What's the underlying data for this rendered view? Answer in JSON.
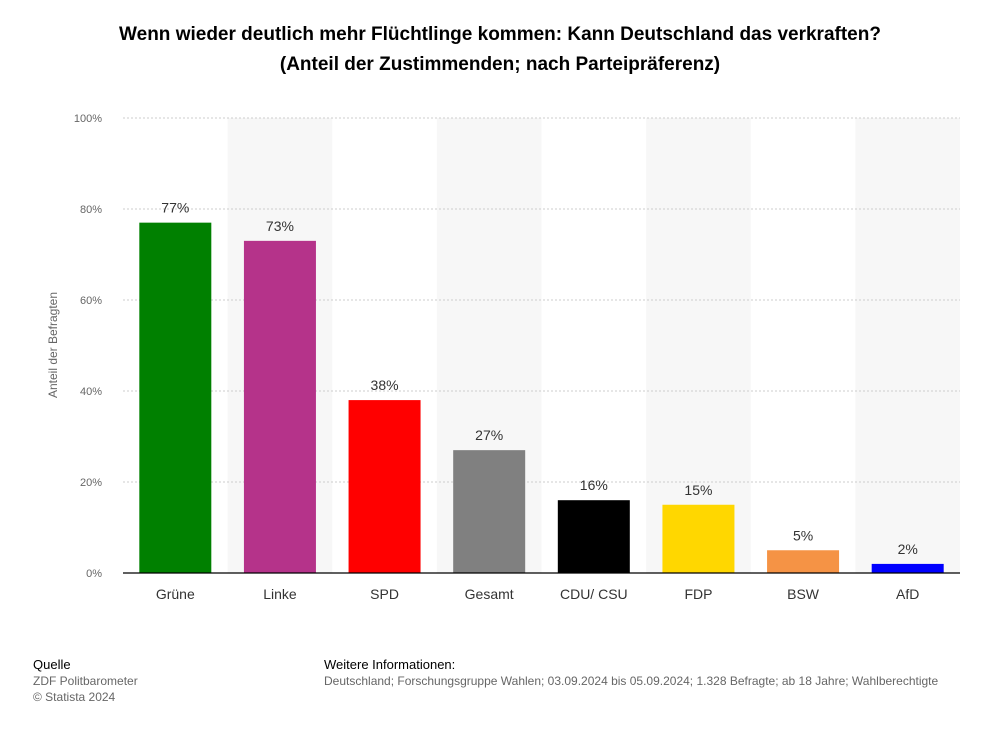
{
  "header": {
    "title_line1": "Wenn wieder deutlich mehr Flüchtlinge kommen: Kann Deutschland das verkraften?",
    "title_line2": "(Anteil der Zustimmenden; nach Parteipräferenz)"
  },
  "chart_data": {
    "type": "bar",
    "title": "Wenn wieder deutlich mehr Flüchtlinge kommen: Kann Deutschland das verkraften?",
    "subtitle": "(Anteil der Zustimmenden; nach Parteipräferenz)",
    "ylabel": "Anteil der Befragten",
    "xlabel": "",
    "ylim": [
      0,
      100
    ],
    "yticks": [
      "0%",
      "20%",
      "40%",
      "60%",
      "80%",
      "100%"
    ],
    "categories": [
      "Grüne",
      "Linke",
      "SPD",
      "Gesamt",
      "CDU/ CSU",
      "FDP",
      "BSW",
      "AfD"
    ],
    "values": [
      77,
      73,
      38,
      27,
      16,
      15,
      5,
      2
    ],
    "value_labels": [
      "77%",
      "73%",
      "38%",
      "27%",
      "16%",
      "15%",
      "5%",
      "2%"
    ],
    "colors": [
      "#008000",
      "#b5338a",
      "#ff0000",
      "#808080",
      "#000000",
      "#ffd700",
      "#f59345",
      "#0000ff"
    ],
    "grid": true,
    "legend": "none"
  },
  "footer": {
    "source_heading": "Quelle",
    "source_line1": "ZDF Politbarometer",
    "source_line2": "© Statista 2024",
    "info_heading": "Weitere Informationen:",
    "info_text": "Deutschland; Forschungsgruppe Wahlen; 03.09.2024 bis 05.09.2024; 1.328 Befragte; ab 18 Jahre; Wahlberechtigte"
  }
}
